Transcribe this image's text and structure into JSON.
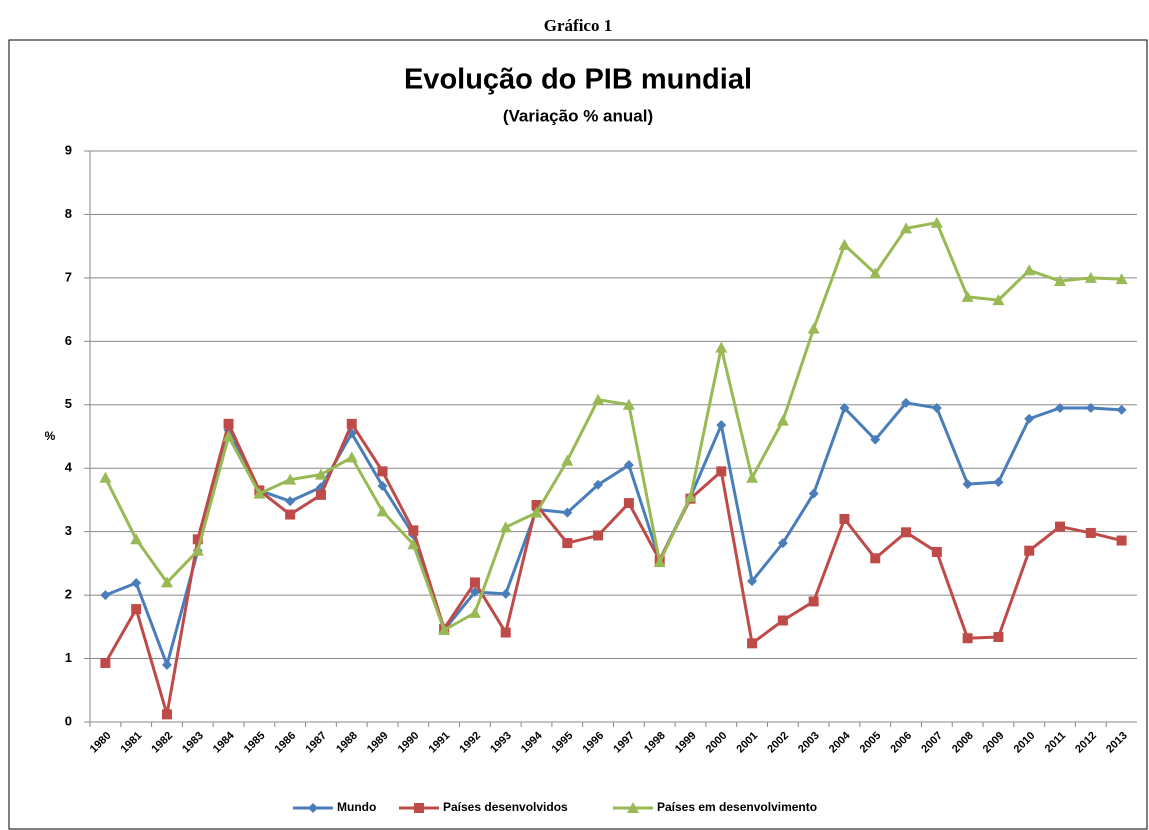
{
  "heading": "Gráfico 1",
  "chart_data": {
    "type": "line",
    "title": "Evolução do PIB mundial",
    "subtitle": "(Variação % anual)",
    "y_label": "%",
    "categories": [
      "1980",
      "1981",
      "1982",
      "1983",
      "1984",
      "1985",
      "1986",
      "1987",
      "1988",
      "1989",
      "1990",
      "1991",
      "1992",
      "1993",
      "1994",
      "1995",
      "1996",
      "1997",
      "1998",
      "1999",
      "2000",
      "2001",
      "2002",
      "2003",
      "2004",
      "2005",
      "2006",
      "2007",
      "2008",
      "2009",
      "2010",
      "2011",
      "2012",
      "2013"
    ],
    "series": [
      {
        "name": "Mundo",
        "color": "#4a7ebb",
        "marker": "diamond",
        "values": [
          2.0,
          2.19,
          0.9,
          2.7,
          4.6,
          3.65,
          3.48,
          3.7,
          4.55,
          3.72,
          2.95,
          1.45,
          2.05,
          2.02,
          3.35,
          3.3,
          3.74,
          4.05,
          2.55,
          3.55,
          4.68,
          2.22,
          2.82,
          3.6,
          4.95,
          4.45,
          5.03,
          4.95,
          3.75,
          3.78,
          4.78,
          4.95,
          4.95,
          4.92
        ]
      },
      {
        "name": "Países desenvolvidos",
        "color": "#be4b48",
        "marker": "square",
        "values": [
          0.93,
          1.78,
          0.12,
          2.88,
          4.7,
          3.65,
          3.27,
          3.58,
          4.7,
          3.95,
          3.02,
          1.47,
          2.2,
          1.41,
          3.42,
          2.82,
          2.94,
          3.45,
          2.55,
          3.52,
          3.95,
          1.24,
          1.6,
          1.9,
          3.2,
          2.58,
          2.99,
          2.68,
          1.32,
          1.34,
          2.7,
          3.08,
          2.98,
          2.86
        ]
      },
      {
        "name": "Países em desenvolvimento",
        "color": "#98b954",
        "marker": "triangle",
        "values": [
          3.85,
          2.88,
          2.2,
          2.7,
          4.5,
          3.6,
          3.82,
          3.9,
          4.17,
          3.32,
          2.8,
          1.45,
          1.72,
          3.07,
          3.3,
          4.12,
          5.08,
          5.0,
          2.52,
          3.55,
          5.9,
          3.85,
          4.75,
          6.2,
          7.52,
          7.07,
          7.78,
          7.87,
          6.7,
          6.65,
          7.12,
          6.95,
          7.0,
          6.98
        ]
      }
    ],
    "ylim": [
      0,
      9
    ],
    "yticks": [
      0,
      1,
      2,
      3,
      4,
      5,
      6,
      7,
      8,
      9
    ],
    "grid": true,
    "legend": "bottom"
  }
}
